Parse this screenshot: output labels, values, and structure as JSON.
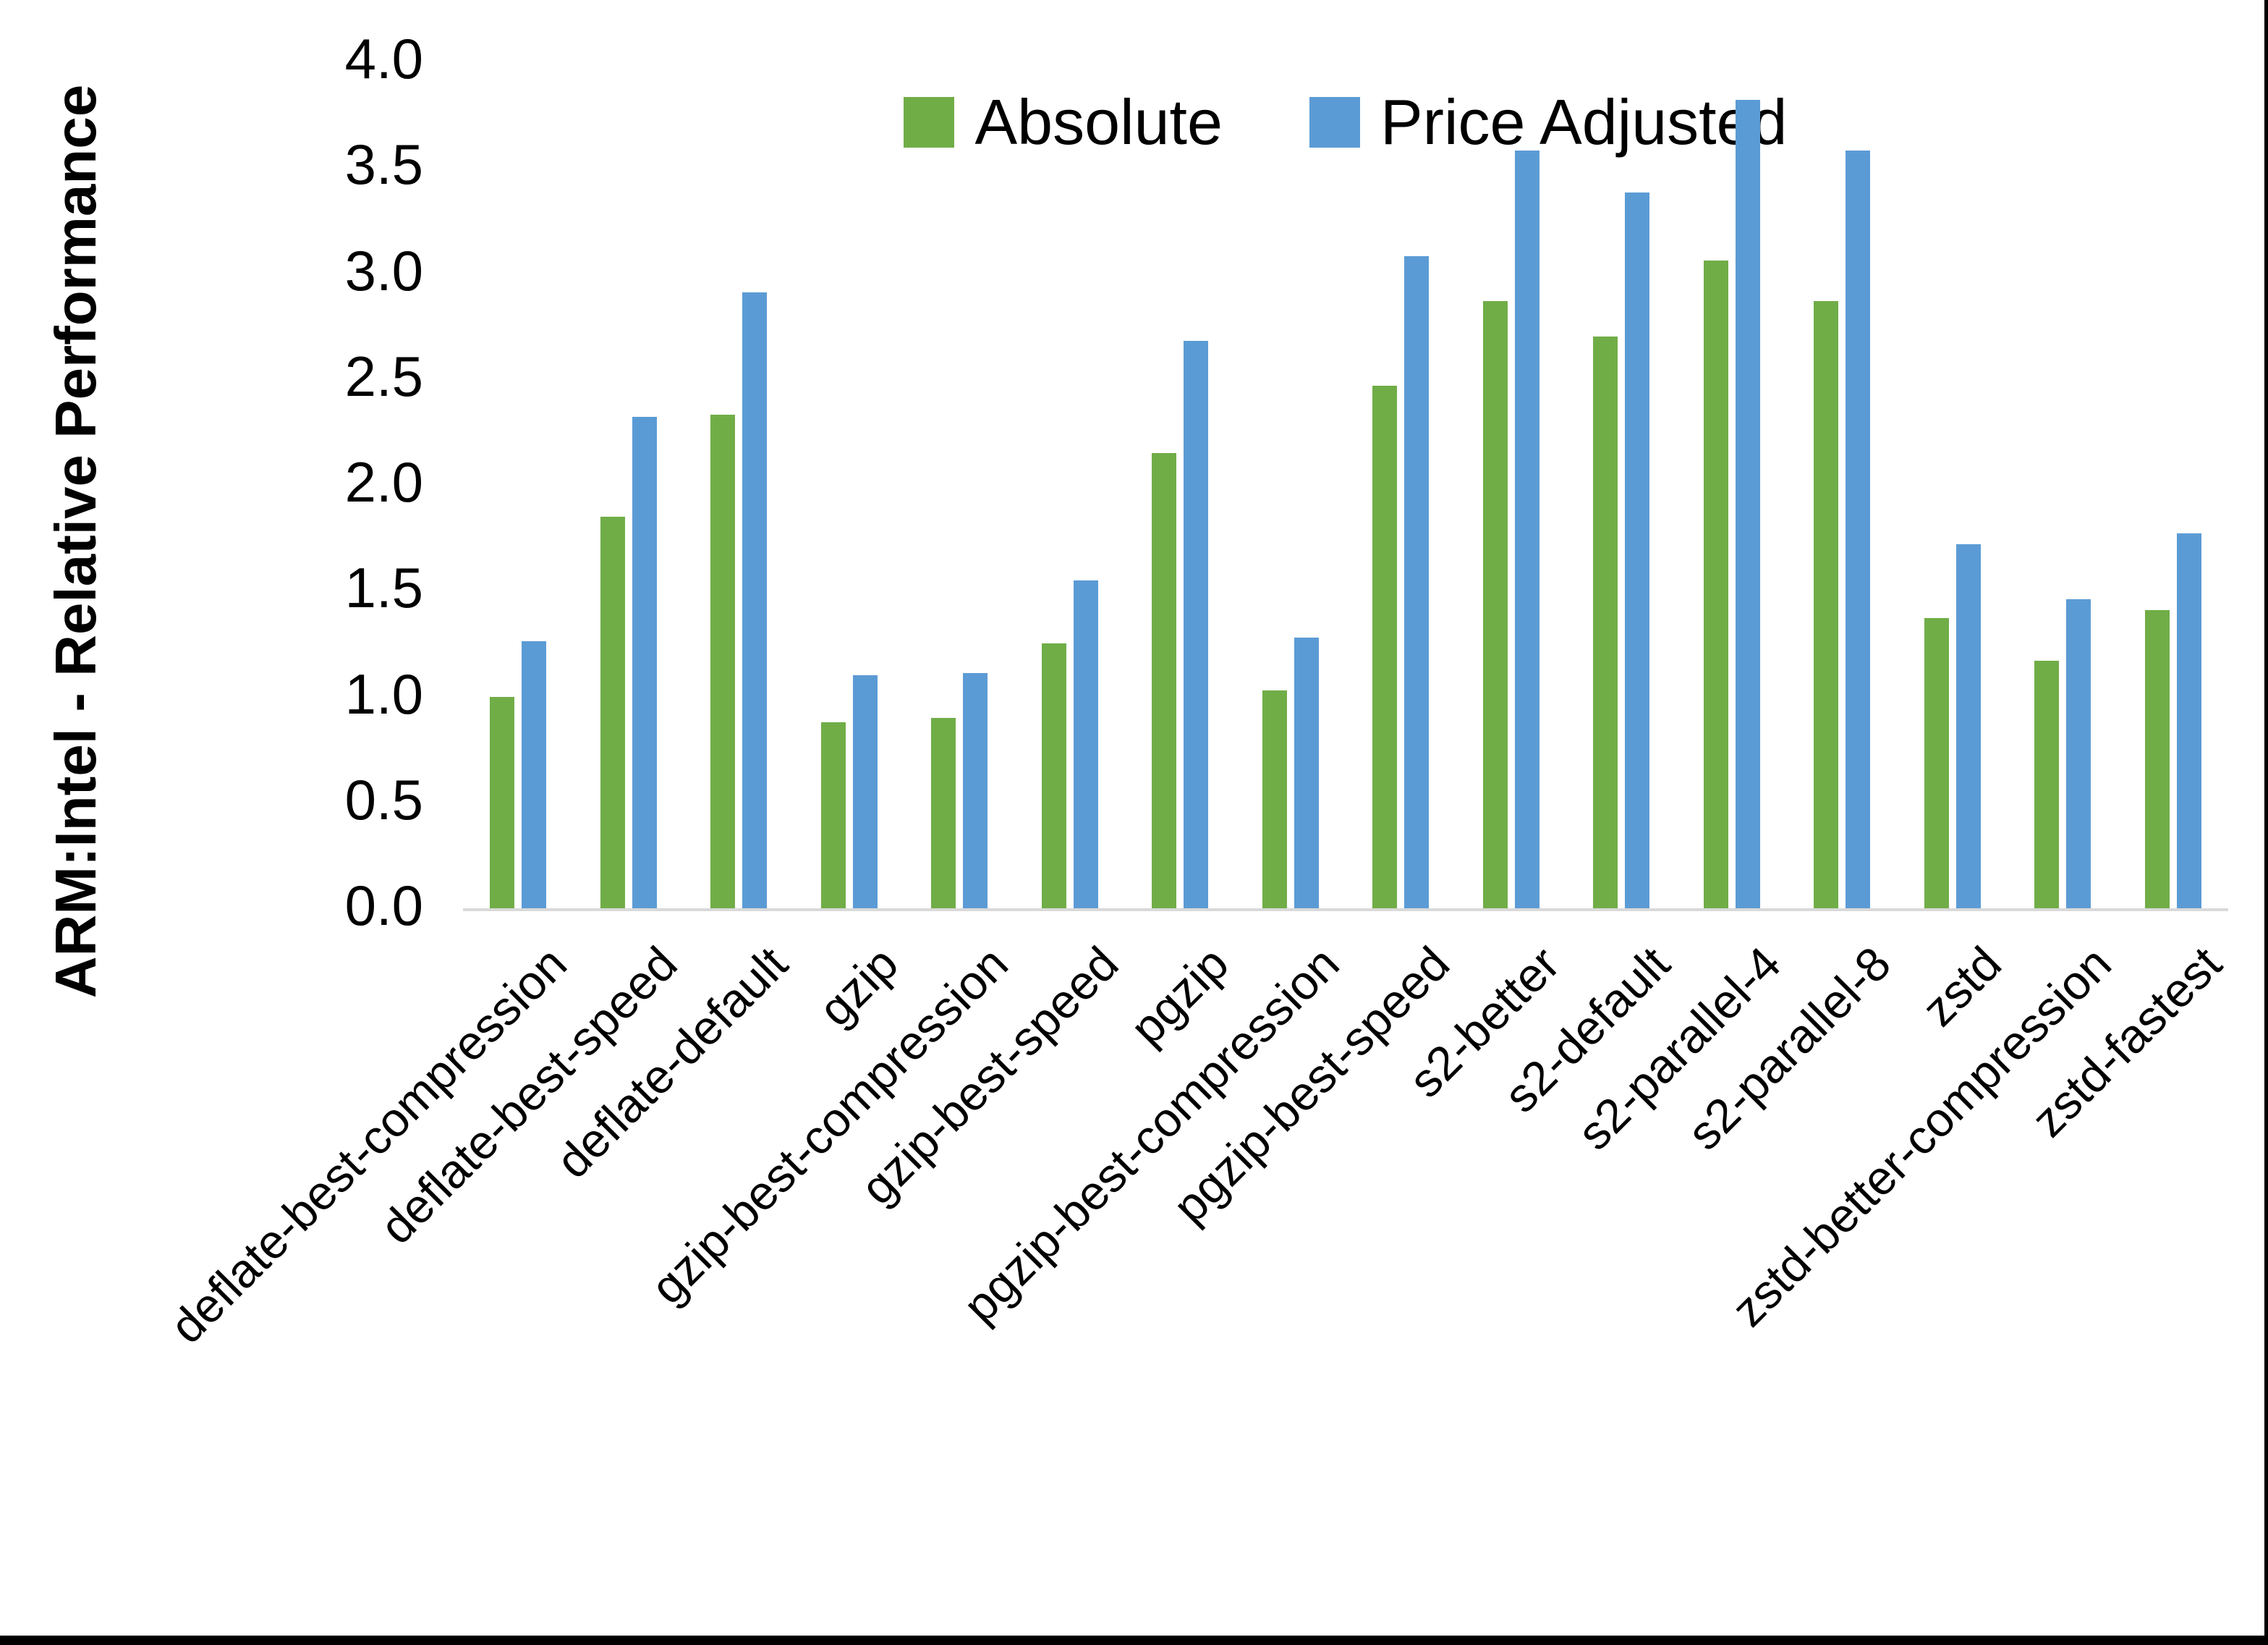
{
  "figure": {
    "background_color": "#ffffff",
    "border_bottom_color": "#000000",
    "border_right_color": "#000000",
    "axis_line_color": "#d9d9d9",
    "text_color": "#000000"
  },
  "legend": {
    "items": [
      {
        "label": "Absolute",
        "color": "#70AD47"
      },
      {
        "label": "Price Adjusted",
        "color": "#5B9BD5"
      }
    ],
    "position": "top-center"
  },
  "chart_data": {
    "type": "bar",
    "title": "",
    "xlabel": "",
    "ylabel": "ARM:Intel - Relative Performance",
    "ylim": [
      0,
      4
    ],
    "ytick_step": 0.5,
    "ytick_labels": [
      "0.0",
      "0.5",
      "1.0",
      "1.5",
      "2.0",
      "2.5",
      "3.0",
      "3.5",
      "4.0"
    ],
    "grid": false,
    "legend_position": "top-center",
    "categories": [
      "deflate-best-compression",
      "deflate-best-speed",
      "deflate-default",
      "gzip",
      "gzip-best-compression",
      "gzip-best-speed",
      "pgzip",
      "pgzip-best-compression",
      "pgzip-best-speed",
      "s2-better",
      "s2-default",
      "s2-parallel-4",
      "s2-parallel-8",
      "zstd",
      "zstd-better-compression",
      "zstd-fastest"
    ],
    "series": [
      {
        "name": "Absolute",
        "color": "#70AD47",
        "values": [
          1.0,
          1.85,
          2.33,
          0.88,
          0.9,
          1.25,
          2.15,
          1.03,
          2.47,
          2.87,
          2.7,
          3.06,
          2.87,
          1.37,
          1.17,
          1.41
        ]
      },
      {
        "name": "Price Adjusted",
        "color": "#5B9BD5",
        "values": [
          1.26,
          2.32,
          2.91,
          1.1,
          1.11,
          1.55,
          2.68,
          1.28,
          3.08,
          3.58,
          3.38,
          3.82,
          3.58,
          1.72,
          1.46,
          1.77
        ]
      }
    ]
  }
}
